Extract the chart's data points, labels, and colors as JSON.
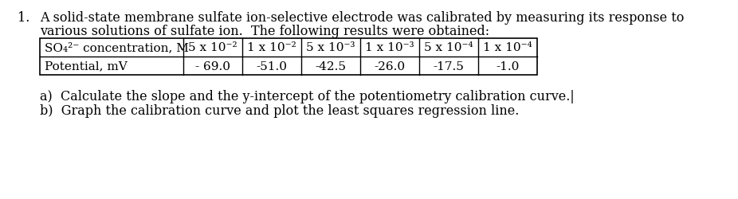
{
  "title_number": "1.",
  "line1": "A solid-state membrane sulfate ion-selective electrode was calibrated by measuring its response to",
  "line2": "various solutions of sulfate ion.  The following results were obtained:",
  "table": {
    "row1_label": "SO₄²⁻ concentration, M",
    "row2_label": "Potential, mV",
    "concentrations": [
      "5 x 10⁻²",
      "1 x 10⁻²",
      "5 x 10⁻³",
      "1 x 10⁻³",
      "5 x 10⁻⁴",
      "1 x 10⁻⁴"
    ],
    "potentials": [
      "- 69.0",
      "-51.0",
      "-42.5",
      "-26.0",
      "-17.5",
      "-1.0"
    ]
  },
  "q1": "a)  Calculate the slope and the y-intercept of the potentiometry calibration curve.|",
  "q2": "b)  Graph the calibration curve and plot the least squares regression line.",
  "bg_color": "#ffffff",
  "text_color": "#000000",
  "font_size": 11.5,
  "table_font_size": 11.0,
  "fig_width": 9.26,
  "fig_height": 2.51,
  "dpi": 100
}
